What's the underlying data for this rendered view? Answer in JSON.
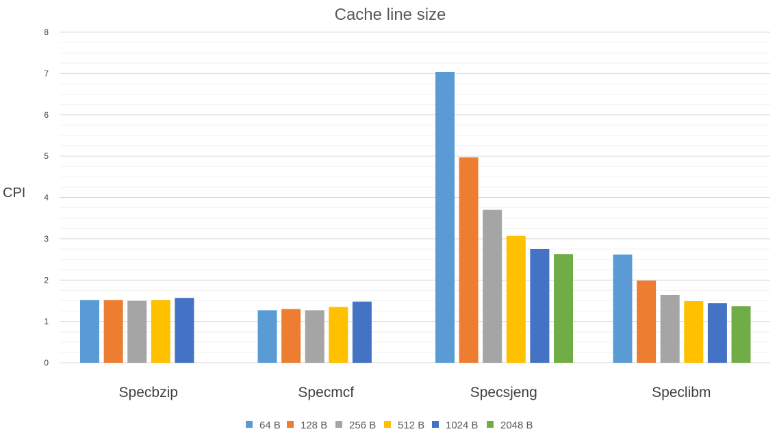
{
  "chart_data": {
    "type": "bar",
    "title": "Cache line size",
    "xlabel": "",
    "ylabel": "CPI",
    "ylim": [
      0,
      8
    ],
    "yticks": [
      "0",
      "1",
      "2",
      "3",
      "4",
      "5",
      "6",
      "7",
      "8"
    ],
    "grid": true,
    "legend_position": "bottom",
    "categories": [
      "Specbzip",
      "Specmcf",
      "Specsjeng",
      "Speclibm"
    ],
    "series": [
      {
        "name": "64 B",
        "color": "#5B9BD5",
        "values": [
          1.52,
          1.27,
          7.04,
          2.62
        ]
      },
      {
        "name": "128 B",
        "color": "#ED7D31",
        "values": [
          1.52,
          1.3,
          4.97,
          1.99
        ]
      },
      {
        "name": "256 B",
        "color": "#A5A5A5",
        "values": [
          1.5,
          1.27,
          3.7,
          1.64
        ]
      },
      {
        "name": "512 B",
        "color": "#FFC000",
        "values": [
          1.52,
          1.35,
          3.07,
          1.49
        ]
      },
      {
        "name": "1024 B",
        "color": "#4472C4",
        "values": [
          1.57,
          1.48,
          2.75,
          1.44
        ]
      },
      {
        "name": "2048 B",
        "color": "#70AD47",
        "values": [
          null,
          null,
          2.63,
          1.37
        ]
      }
    ]
  }
}
